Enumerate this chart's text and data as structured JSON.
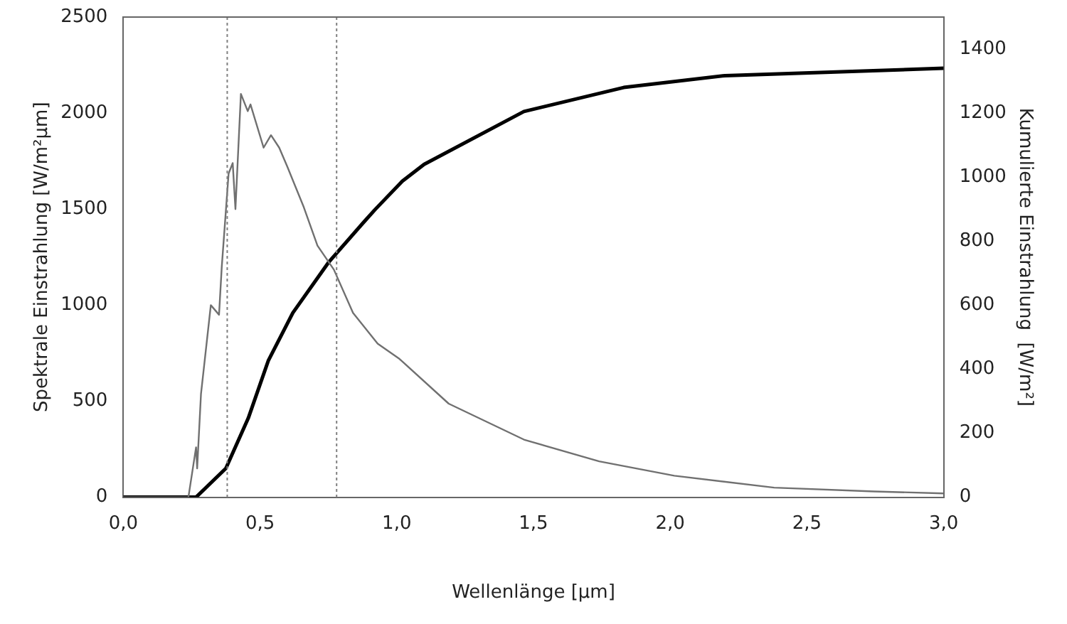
{
  "chart_data": {
    "type": "line",
    "xlabel": "Wellenlänge [µm]",
    "ylabel": "Spektrale Einstrahlung [W/m²µm]",
    "y2label": "Kumulierte Einstrahlung  [W/m²]",
    "xlim": [
      0,
      3
    ],
    "xticks": [
      {
        "value": 0,
        "label": "0,0"
      },
      {
        "value": 0.5,
        "label": "0,5"
      },
      {
        "value": 1,
        "label": "1,0"
      },
      {
        "value": 1.5,
        "label": "1,5"
      },
      {
        "value": 2,
        "label": "2,0"
      },
      {
        "value": 2.5,
        "label": "2,5"
      },
      {
        "value": 3,
        "label": "3,0"
      }
    ],
    "ylim": [
      0,
      2500
    ],
    "yticks": [
      0,
      500,
      1000,
      1500,
      2000,
      2500
    ],
    "y2lim": [
      0,
      1500
    ],
    "y2ticks": [
      0,
      200,
      400,
      600,
      800,
      1000,
      1200,
      1400
    ],
    "grid": false,
    "legend": false,
    "marker": "none",
    "line_style": "solid",
    "series": [
      {
        "color": "#707070",
        "x": [
          0,
          0.238,
          0.266,
          0.27,
          0.284,
          0.32,
          0.35,
          0.36,
          0.385,
          0.4,
          0.41,
          0.43,
          0.455,
          0.465,
          0.513,
          0.54,
          0.57,
          0.6,
          0.66,
          0.71,
          0.77,
          0.84,
          0.93,
          1.01,
          1.19,
          1.465,
          1.74,
          2.015,
          2.38,
          2.745,
          3.0
        ],
        "values": [
          0,
          0,
          260,
          150,
          537,
          1000,
          950,
          1200,
          1685,
          1740,
          1500,
          2100,
          2010,
          2045,
          1820,
          1885,
          1820,
          1720,
          1510,
          1310,
          1185,
          960,
          800,
          720,
          487,
          300,
          187,
          112,
          50,
          30,
          20
        ]
      },
      {
        "color": "#000000",
        "axis": "y2",
        "x": [
          0,
          0.266,
          0.375,
          0.457,
          0.53,
          0.62,
          0.75,
          0.88,
          0.92,
          1.02,
          1.1,
          1.465,
          1.83,
          2.2,
          3.0
        ],
        "values": [
          0,
          0,
          90,
          247,
          426,
          576,
          733,
          860,
          898,
          987,
          1040,
          1205,
          1280,
          1317,
          1340
        ]
      }
    ],
    "ref_lines": [
      {
        "axis": "x",
        "value": 0.38,
        "line_style": "dotted",
        "color": "#808080"
      },
      {
        "axis": "x",
        "value": 0.78,
        "line_style": "dotted",
        "color": "#808080"
      }
    ]
  }
}
